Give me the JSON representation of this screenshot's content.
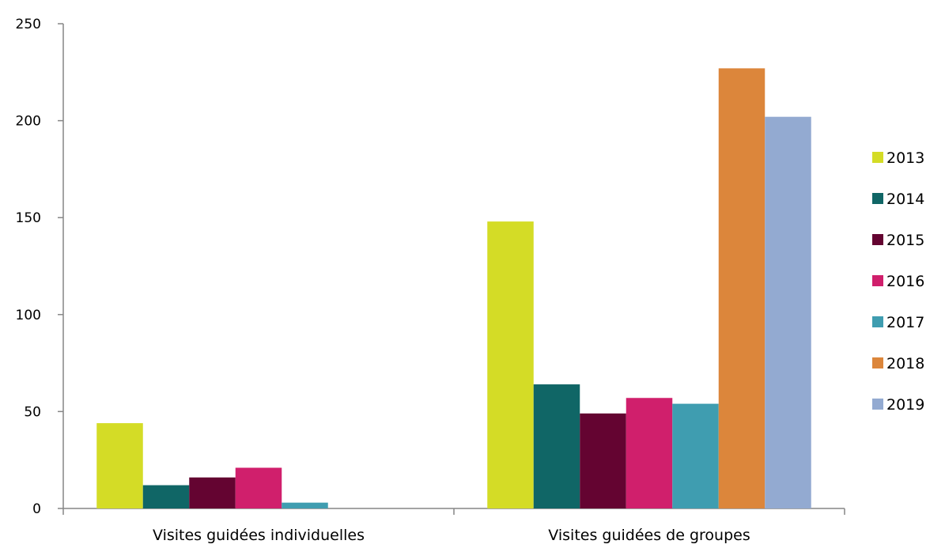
{
  "chart_data": {
    "type": "bar",
    "title": "",
    "xlabel": "",
    "ylabel": "",
    "categories": [
      "Visites guidées individuelles",
      "Visites guidées de groupes"
    ],
    "ylim": [
      0,
      250
    ],
    "yticks": [
      0,
      50,
      100,
      150,
      200,
      250
    ],
    "grid": false,
    "legend_position": "right",
    "series": [
      {
        "name": "2013",
        "color": "#d4dc26",
        "values": [
          44,
          148
        ]
      },
      {
        "name": "2014",
        "color": "#106666",
        "values": [
          12,
          64
        ]
      },
      {
        "name": "2015",
        "color": "#640431",
        "values": [
          16,
          49
        ]
      },
      {
        "name": "2016",
        "color": "#d01f6c",
        "values": [
          21,
          57
        ]
      },
      {
        "name": "2017",
        "color": "#3f9db0",
        "values": [
          3,
          54
        ]
      },
      {
        "name": "2018",
        "color": "#dc863b",
        "values": [
          0,
          227
        ]
      },
      {
        "name": "2019",
        "color": "#93aad1",
        "values": [
          0,
          202
        ]
      }
    ]
  }
}
